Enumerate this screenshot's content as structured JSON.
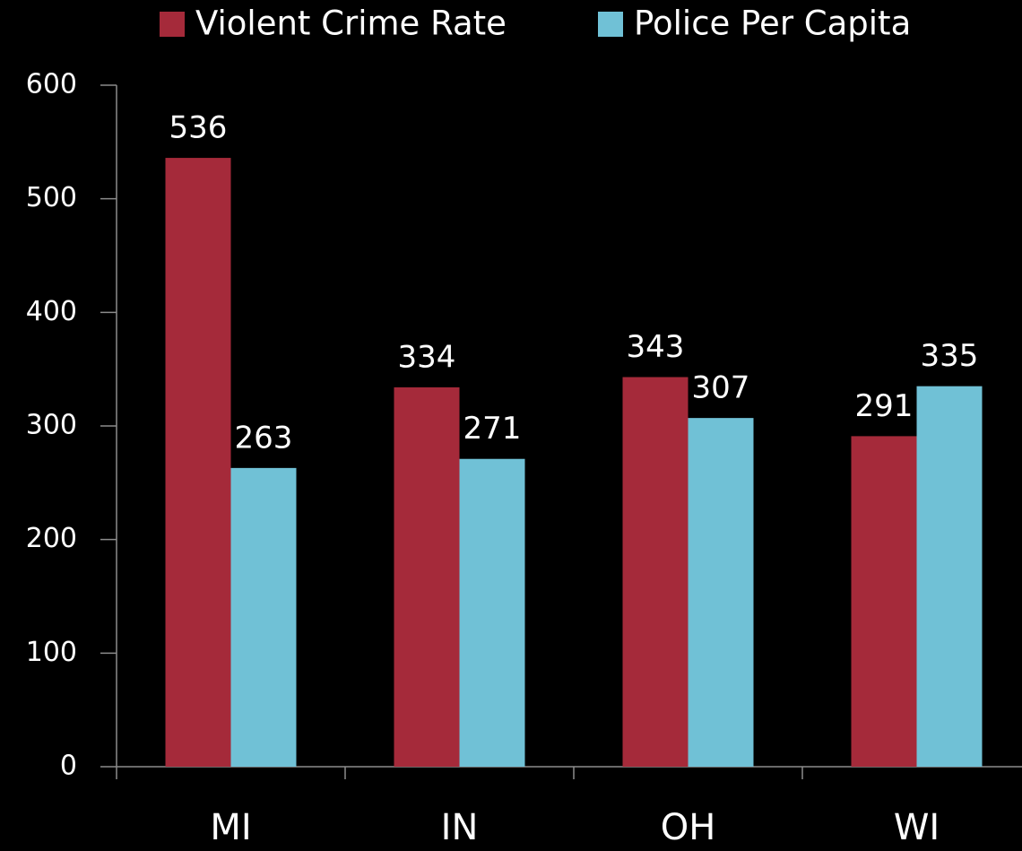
{
  "chart_data": {
    "type": "bar",
    "categories": [
      "MI",
      "IN",
      "OH",
      "WI"
    ],
    "series": [
      {
        "name": "Violent Crime Rate",
        "color": "#a52a3a",
        "values": [
          536,
          334,
          343,
          291
        ]
      },
      {
        "name": "Police Per Capita",
        "color": "#70c1d6",
        "values": [
          263,
          271,
          307,
          335
        ]
      }
    ],
    "ylim": [
      0,
      600
    ],
    "yticks": [
      0,
      100,
      200,
      300,
      400,
      500,
      600
    ],
    "legend": "top",
    "data_labels": true
  }
}
